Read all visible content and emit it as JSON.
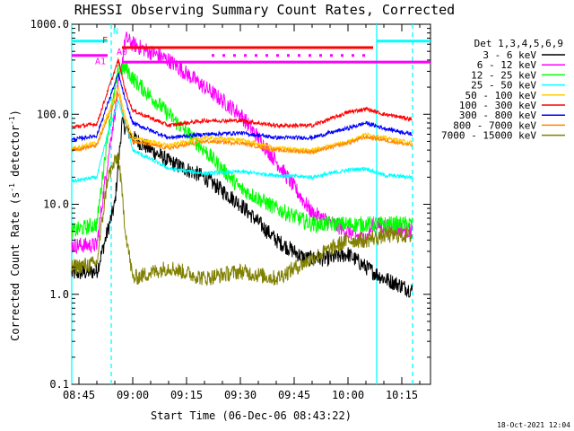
{
  "chart_data": {
    "type": "line",
    "title": "RHESSI Observing Summary Count Rates, Corrected",
    "xlabel": "Start Time (06-Dec-06 08:43:22)",
    "ylabel_main": "Corrected Count Rate (s",
    "ylabel_sup1": "-1",
    "ylabel_mid": " detector",
    "ylabel_sup2": "-1",
    "ylabel_end": ")",
    "yscale": "log",
    "ylim": [
      0.1,
      1000
    ],
    "xlim": [
      "08:43",
      "10:23"
    ],
    "x_ticks": [
      "08:45",
      "09:00",
      "09:15",
      "09:30",
      "09:45",
      "10:00",
      "10:15"
    ],
    "y_ticks": [
      "0.1",
      "1.0",
      "10.0",
      "100.0",
      "1000.0"
    ],
    "footer_date": "18-Oct-2021 12:04",
    "legend_header": "Det 1,3,4,5,6,9",
    "flag_labels": {
      "n": "N",
      "f": "F",
      "a0": "A0",
      "a1": "A1"
    },
    "series": [
      {
        "name": "3 - 6 keV",
        "color": "#000000",
        "points": [
          [
            "08:43",
            1.7
          ],
          [
            "08:50",
            1.8
          ],
          [
            "08:55",
            10
          ],
          [
            "08:57",
            80
          ],
          [
            "09:00",
            55
          ],
          [
            "09:10",
            30
          ],
          [
            "09:20",
            20
          ],
          [
            "09:30",
            10
          ],
          [
            "09:40",
            4
          ],
          [
            "09:48",
            2.5
          ],
          [
            "09:55",
            2.5
          ],
          [
            "10:00",
            2.8
          ],
          [
            "10:05",
            2.0
          ],
          [
            "10:10",
            1.5
          ],
          [
            "10:18",
            1.1
          ]
        ]
      },
      {
        "name": "6 - 12 keV",
        "color": "#ff00ff",
        "points": [
          [
            "08:43",
            3.5
          ],
          [
            "08:50",
            3.5
          ],
          [
            "08:53",
            30
          ],
          [
            "08:56",
            200
          ],
          [
            "08:58",
            700
          ],
          [
            "09:00",
            600
          ],
          [
            "09:10",
            400
          ],
          [
            "09:20",
            200
          ],
          [
            "09:30",
            100
          ],
          [
            "09:40",
            30
          ],
          [
            "09:50",
            8
          ],
          [
            "10:00",
            5
          ],
          [
            "10:05",
            4
          ],
          [
            "10:07",
            6
          ],
          [
            "10:18",
            5
          ]
        ]
      },
      {
        "name": "12 - 25 keV",
        "color": "#00ff00",
        "points": [
          [
            "08:43",
            5
          ],
          [
            "08:50",
            6
          ],
          [
            "08:53",
            60
          ],
          [
            "08:56",
            300
          ],
          [
            "08:58",
            330
          ],
          [
            "09:00",
            250
          ],
          [
            "09:10",
            100
          ],
          [
            "09:20",
            40
          ],
          [
            "09:30",
            15
          ],
          [
            "09:40",
            9
          ],
          [
            "09:50",
            6
          ],
          [
            "10:00",
            6
          ],
          [
            "10:05",
            6
          ],
          [
            "10:10",
            6
          ],
          [
            "10:18",
            6
          ]
        ]
      },
      {
        "name": "25 - 50 keV",
        "color": "#00ffff",
        "points": [
          [
            "08:43",
            18
          ],
          [
            "08:50",
            20
          ],
          [
            "08:53",
            60
          ],
          [
            "08:56",
            140
          ],
          [
            "08:58",
            80
          ],
          [
            "09:00",
            40
          ],
          [
            "09:10",
            25
          ],
          [
            "09:20",
            22
          ],
          [
            "09:30",
            23
          ],
          [
            "09:40",
            21
          ],
          [
            "09:50",
            20
          ],
          [
            "10:00",
            24
          ],
          [
            "10:05",
            25
          ],
          [
            "10:10",
            21
          ],
          [
            "10:18",
            20
          ]
        ]
      },
      {
        "name": "50 - 100 keV",
        "color": "#ffcc00",
        "points": [
          [
            "08:43",
            42
          ],
          [
            "08:50",
            48
          ],
          [
            "08:53",
            100
          ],
          [
            "08:56",
            200
          ],
          [
            "08:58",
            90
          ],
          [
            "09:00",
            55
          ],
          [
            "09:10",
            45
          ],
          [
            "09:20",
            55
          ],
          [
            "09:30",
            52
          ],
          [
            "09:40",
            42
          ],
          [
            "09:50",
            40
          ],
          [
            "10:00",
            50
          ],
          [
            "10:05",
            60
          ],
          [
            "10:10",
            55
          ],
          [
            "10:18",
            48
          ]
        ]
      },
      {
        "name": "100 - 300 keV",
        "color": "#ff0000",
        "points": [
          [
            "08:43",
            72
          ],
          [
            "08:50",
            78
          ],
          [
            "08:53",
            180
          ],
          [
            "08:56",
            400
          ],
          [
            "08:58",
            180
          ],
          [
            "09:00",
            110
          ],
          [
            "09:10",
            75
          ],
          [
            "09:20",
            85
          ],
          [
            "09:30",
            85
          ],
          [
            "09:40",
            75
          ],
          [
            "09:50",
            75
          ],
          [
            "10:00",
            105
          ],
          [
            "10:05",
            115
          ],
          [
            "10:10",
            100
          ],
          [
            "10:18",
            88
          ]
        ]
      },
      {
        "name": "300 - 800 keV",
        "color": "#0000ff",
        "points": [
          [
            "08:43",
            52
          ],
          [
            "08:50",
            58
          ],
          [
            "08:53",
            130
          ],
          [
            "08:56",
            280
          ],
          [
            "08:58",
            140
          ],
          [
            "09:00",
            80
          ],
          [
            "09:10",
            55
          ],
          [
            "09:20",
            60
          ],
          [
            "09:30",
            62
          ],
          [
            "09:40",
            55
          ],
          [
            "09:50",
            55
          ],
          [
            "10:00",
            70
          ],
          [
            "10:05",
            80
          ],
          [
            "10:10",
            70
          ],
          [
            "10:18",
            60
          ]
        ]
      },
      {
        "name": "800 - 7000 keV",
        "color": "#ff8800",
        "points": [
          [
            "08:43",
            40
          ],
          [
            "08:50",
            45
          ],
          [
            "08:53",
            90
          ],
          [
            "08:56",
            170
          ],
          [
            "08:58",
            80
          ],
          [
            "09:00",
            50
          ],
          [
            "09:10",
            42
          ],
          [
            "09:20",
            50
          ],
          [
            "09:30",
            48
          ],
          [
            "09:40",
            40
          ],
          [
            "09:50",
            38
          ],
          [
            "10:00",
            48
          ],
          [
            "10:05",
            56
          ],
          [
            "10:10",
            52
          ],
          [
            "10:18",
            45
          ]
        ]
      },
      {
        "name": "7000 - 15000 keV",
        "color": "#808000",
        "points": [
          [
            "08:43",
            2.0
          ],
          [
            "08:50",
            2.2
          ],
          [
            "08:53",
            20
          ],
          [
            "08:56",
            35
          ],
          [
            "08:58",
            5
          ],
          [
            "09:00",
            1.5
          ],
          [
            "09:10",
            2.0
          ],
          [
            "09:20",
            1.5
          ],
          [
            "09:30",
            1.8
          ],
          [
            "09:40",
            1.5
          ],
          [
            "09:50",
            2.5
          ],
          [
            "10:00",
            4
          ],
          [
            "10:05",
            4
          ],
          [
            "10:10",
            4.5
          ],
          [
            "10:18",
            4.5
          ]
        ]
      }
    ],
    "flags": [
      {
        "name": "N",
        "color": "#00ffff",
        "y": 650,
        "spans": [
          [
            "08:43",
            "08:53"
          ],
          [
            "10:08",
            "10:23"
          ]
        ]
      },
      {
        "name": "F",
        "color": "#ff0000",
        "y": 550,
        "spans": [
          [
            "08:57",
            "10:07"
          ]
        ]
      },
      {
        "name": "A0",
        "color": "#ff00ff",
        "y": 450,
        "spans": [
          [
            "08:43",
            "08:53"
          ]
        ],
        "dotted_spans": [
          [
            "09:22",
            "10:07"
          ]
        ]
      },
      {
        "name": "A1",
        "color": "#ff00ff",
        "y": 380,
        "spans": [
          [
            "08:57",
            "10:23"
          ]
        ]
      }
    ],
    "vertical_markers": [
      {
        "time": "08:43",
        "color": "#00ffff",
        "style": "solid"
      },
      {
        "time": "08:54",
        "color": "#00ffff",
        "style": "dashed"
      },
      {
        "time": "10:08",
        "color": "#00ffff",
        "style": "solid"
      },
      {
        "time": "10:18",
        "color": "#00ffff",
        "style": "dashed"
      }
    ],
    "grid": false,
    "legend_position": "right"
  }
}
